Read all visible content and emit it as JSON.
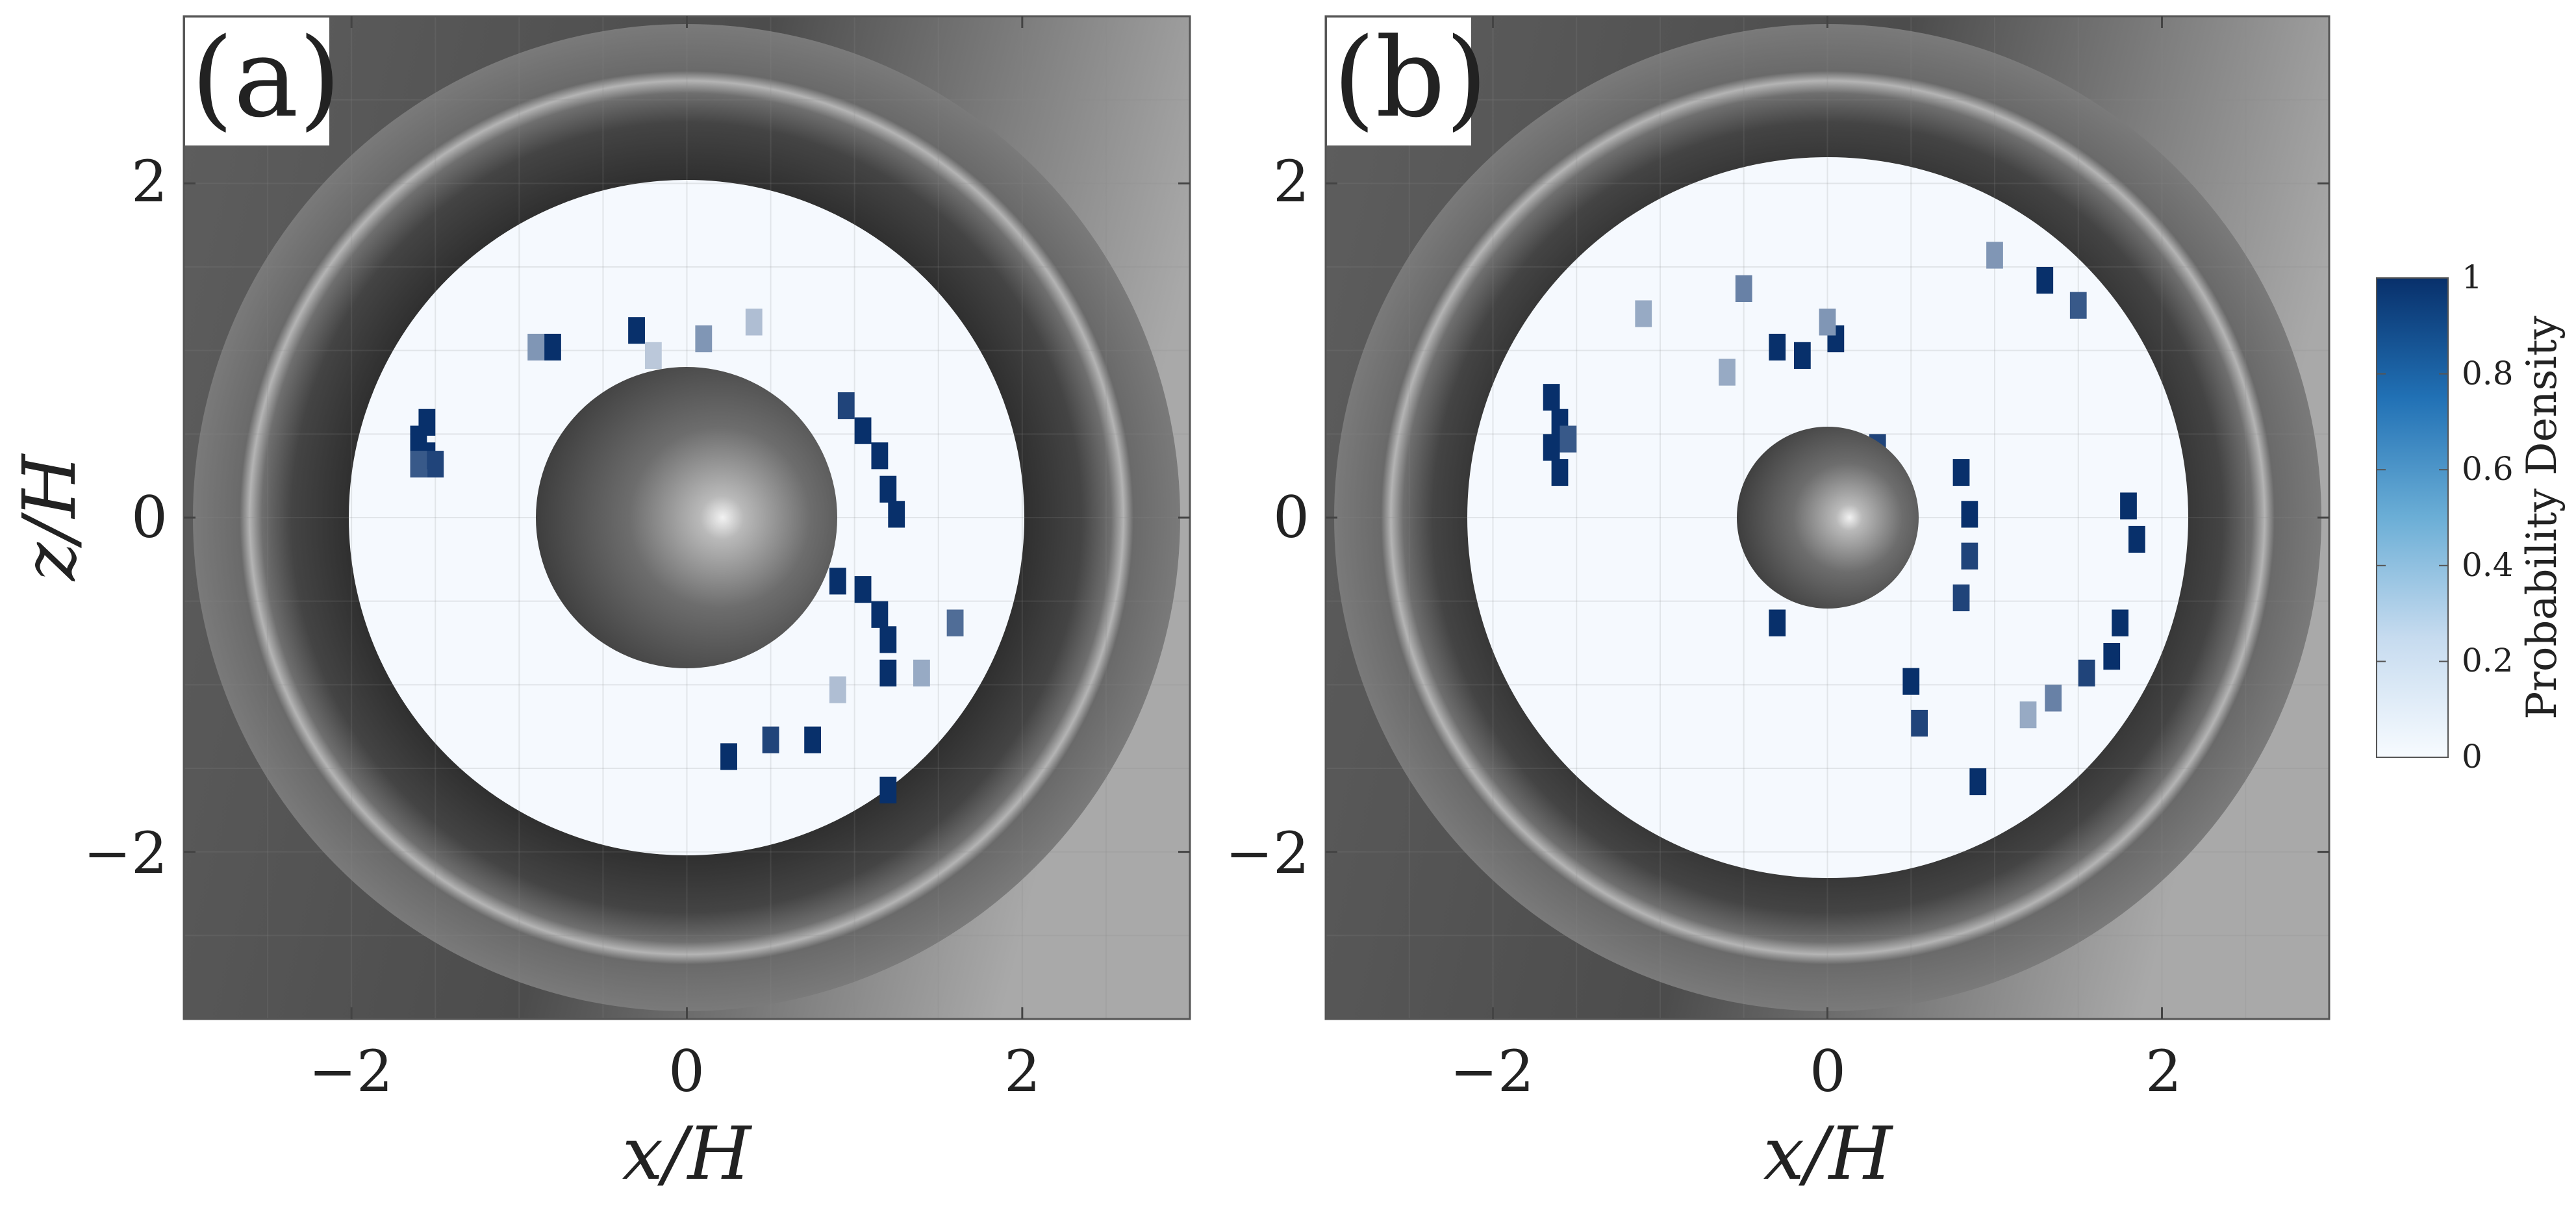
{
  "figure": {
    "colorbar": {
      "label": "Probability Density",
      "ticks": [
        0,
        0.2,
        0.4,
        0.6,
        0.8,
        1
      ],
      "tick_labels": [
        "0",
        "0.2",
        "0.4",
        "0.6",
        "0.8",
        "1"
      ],
      "colors": [
        "#f7fbff",
        "#08306b"
      ]
    },
    "panels": [
      {
        "label": "(a)",
        "xlabel": "x/H",
        "ylabel": "z/H"
      },
      {
        "label": "(b)",
        "xlabel": "x/H",
        "ylabel": ""
      }
    ],
    "tick_labels": [
      "−2",
      "0",
      "2"
    ]
  },
  "chart_data": [
    {
      "type": "heatmap",
      "title": "(a)",
      "xlabel": "x/H",
      "ylabel": "z/H",
      "xlim": [
        -3,
        3
      ],
      "ylim": [
        -3,
        3
      ],
      "xticks": [
        -2,
        0,
        2
      ],
      "yticks": [
        -2,
        0,
        2
      ],
      "domain_outer_radius": 2.0,
      "sphere_radius": 0.9,
      "clim": [
        0,
        1
      ],
      "cells": [
        [
          -1.55,
          0.6,
          1.0
        ],
        [
          -1.6,
          0.5,
          1.0
        ],
        [
          -1.55,
          0.4,
          1.0
        ],
        [
          -1.5,
          0.35,
          0.9
        ],
        [
          -1.6,
          0.35,
          0.8
        ],
        [
          -0.8,
          1.05,
          1.0
        ],
        [
          -0.9,
          1.05,
          0.5
        ],
        [
          -0.3,
          1.15,
          1.0
        ],
        [
          0.1,
          1.1,
          0.5
        ],
        [
          0.95,
          0.7,
          0.9
        ],
        [
          1.05,
          0.55,
          1.0
        ],
        [
          1.15,
          0.4,
          1.0
        ],
        [
          1.2,
          0.2,
          1.0
        ],
        [
          1.25,
          0.05,
          1.0
        ],
        [
          0.9,
          -0.35,
          1.0
        ],
        [
          1.05,
          -0.4,
          1.0
        ],
        [
          1.15,
          -0.55,
          1.0
        ],
        [
          1.2,
          -0.7,
          1.0
        ],
        [
          1.2,
          -0.9,
          1.0
        ],
        [
          0.25,
          -1.4,
          1.0
        ],
        [
          0.5,
          -1.3,
          0.9
        ],
        [
          0.75,
          -1.3,
          1.0
        ],
        [
          1.2,
          -1.6,
          1.0
        ],
        [
          1.6,
          -0.6,
          0.7
        ],
        [
          1.4,
          -0.9,
          0.4
        ],
        [
          0.9,
          -1.0,
          0.3
        ],
        [
          0.4,
          1.2,
          0.3
        ],
        [
          -0.2,
          1.0,
          0.25
        ]
      ]
    },
    {
      "type": "heatmap",
      "title": "(b)",
      "xlabel": "x/H",
      "ylabel": "",
      "xlim": [
        -3,
        3
      ],
      "ylim": [
        -3,
        3
      ],
      "xticks": [
        -2,
        0,
        2
      ],
      "yticks": [
        -2,
        0,
        2
      ],
      "domain_outer_radius": 2.15,
      "sphere_radius": 0.55,
      "clim": [
        0,
        1
      ],
      "cells": [
        [
          -1.65,
          0.75,
          1.0
        ],
        [
          -1.6,
          0.6,
          1.0
        ],
        [
          -1.65,
          0.45,
          1.0
        ],
        [
          -1.6,
          0.3,
          1.0
        ],
        [
          -1.55,
          0.5,
          0.8
        ],
        [
          -0.3,
          1.05,
          1.0
        ],
        [
          -0.15,
          1.0,
          1.0
        ],
        [
          0.05,
          1.1,
          1.0
        ],
        [
          -0.5,
          1.4,
          0.6
        ],
        [
          0.0,
          1.2,
          0.5
        ],
        [
          1.3,
          1.45,
          1.0
        ],
        [
          1.5,
          1.3,
          0.8
        ],
        [
          1.0,
          1.6,
          0.5
        ],
        [
          0.8,
          0.3,
          1.0
        ],
        [
          0.85,
          0.05,
          1.0
        ],
        [
          0.85,
          -0.2,
          0.9
        ],
        [
          0.8,
          -0.45,
          0.9
        ],
        [
          -0.3,
          -0.6,
          1.0
        ],
        [
          0.5,
          -0.95,
          1.0
        ],
        [
          0.55,
          -1.2,
          0.9
        ],
        [
          0.9,
          -1.55,
          1.0
        ],
        [
          1.8,
          0.1,
          1.0
        ],
        [
          1.85,
          -0.1,
          1.0
        ],
        [
          1.75,
          -0.6,
          1.0
        ],
        [
          1.7,
          -0.8,
          1.0
        ],
        [
          1.55,
          -0.9,
          0.9
        ],
        [
          1.35,
          -1.05,
          0.6
        ],
        [
          1.2,
          -1.15,
          0.4
        ],
        [
          0.3,
          0.45,
          0.9
        ],
        [
          -0.6,
          0.9,
          0.4
        ],
        [
          -1.1,
          1.25,
          0.4
        ]
      ]
    }
  ]
}
